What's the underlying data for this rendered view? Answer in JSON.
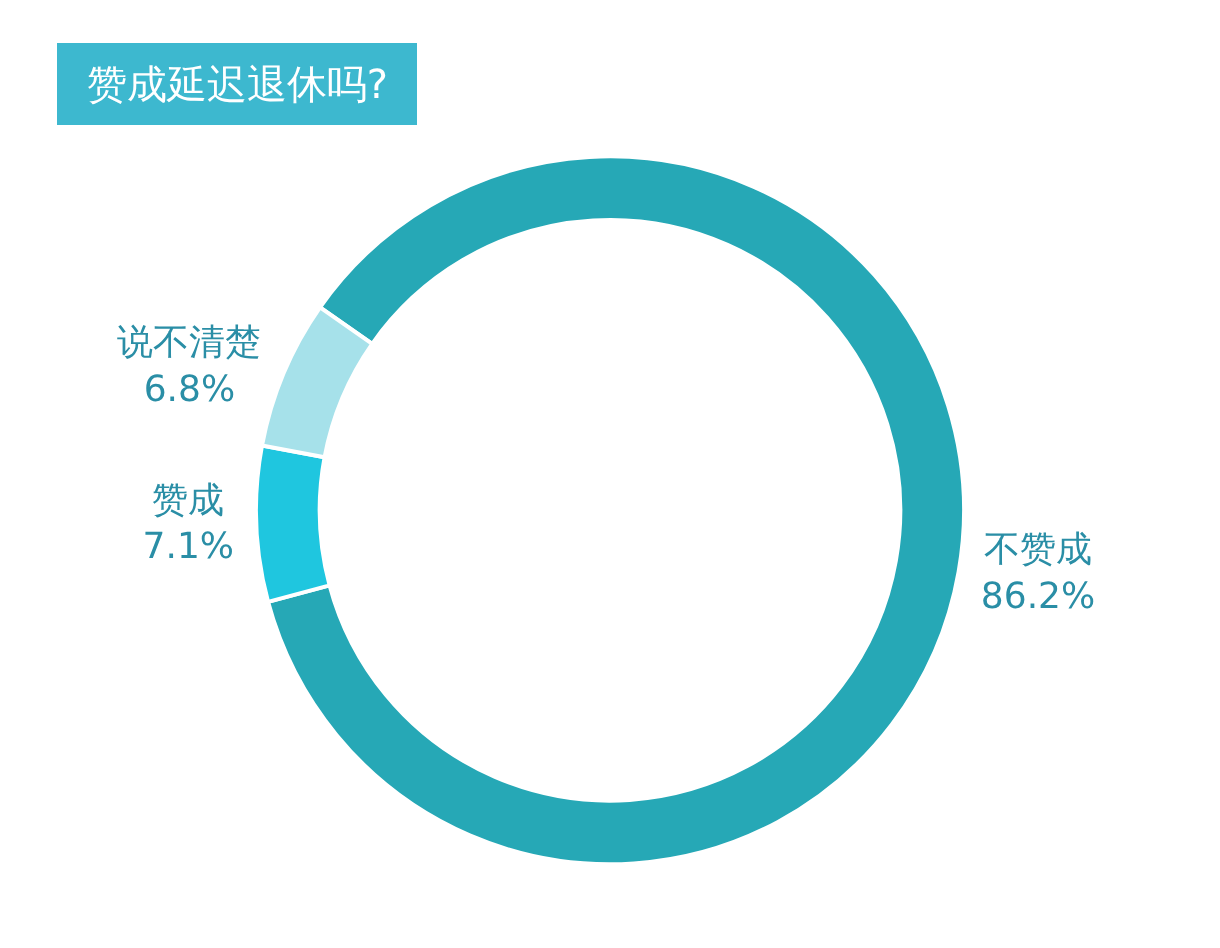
{
  "chart_data": {
    "type": "donut",
    "title": "赞成延迟退休吗?",
    "categories": [
      "不赞成",
      "赞成",
      "说不清楚"
    ],
    "values": [
      86.2,
      7.1,
      6.8
    ],
    "value_labels": [
      "86.2%",
      "7.1%",
      "6.8%"
    ],
    "colors": [
      "#26a8b6",
      "#1fc6df",
      "#a6e1ea"
    ],
    "legend": false
  }
}
